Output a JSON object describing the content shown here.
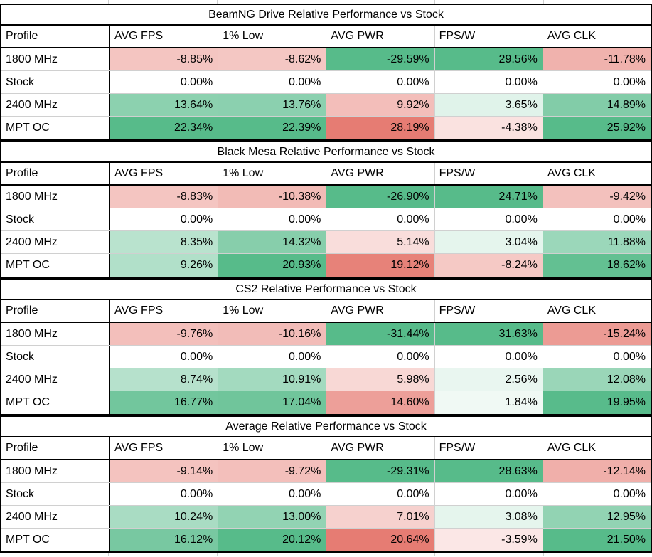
{
  "palette": {
    "border_black": "#000000",
    "gridline_gray": "#d0d0d0",
    "cell_white": "#ffffff",
    "text": "#000000"
  },
  "color_scale": {
    "type": "diverging",
    "negative_color": "#e67c73",
    "midpoint_color": "#ffffff",
    "positive_color": "#57bb8a",
    "note": "AVG PWR column inverted: lower power shown green, higher power shown red"
  },
  "chart_data": [
    {
      "type": "table",
      "title": "BeamNG Drive Relative Performance vs Stock",
      "columns": [
        "Profile",
        "AVG FPS",
        "1% Low",
        "AVG PWR",
        "FPS/W",
        "AVG CLK"
      ],
      "rows": [
        {
          "profile": "1800 MHz",
          "values": [
            "-8.85%",
            "-8.62%",
            "-29.59%",
            "29.56%",
            "-11.78%"
          ],
          "colors": [
            "#f4c5c1",
            "#f4c7c3",
            "#57bb8a",
            "#57bb8a",
            "#f0b2ad"
          ]
        },
        {
          "profile": "Stock",
          "values": [
            "0.00%",
            "0.00%",
            "0.00%",
            "0.00%",
            "0.00%"
          ],
          "colors": [
            "#ffffff",
            "#ffffff",
            "#ffffff",
            "#ffffff",
            "#ffffff"
          ]
        },
        {
          "profile": "2400 MHz",
          "values": [
            "13.64%",
            "13.76%",
            "9.92%",
            "3.65%",
            "14.89%"
          ],
          "colors": [
            "#8cd1af",
            "#8bd0af",
            "#f3beba",
            "#e0f3ea",
            "#82cca8"
          ]
        },
        {
          "profile": "MPT OC",
          "values": [
            "22.34%",
            "22.39%",
            "28.19%",
            "-4.38%",
            "25.92%"
          ],
          "colors": [
            "#57bb8a",
            "#57bb8a",
            "#e67c73",
            "#fae2e0",
            "#57bb8a"
          ]
        }
      ]
    },
    {
      "type": "table",
      "title": "Black Mesa Relative Performance vs Stock",
      "columns": [
        "Profile",
        "AVG FPS",
        "1% Low",
        "AVG PWR",
        "FPS/W",
        "AVG CLK"
      ],
      "rows": [
        {
          "profile": "1800 MHz",
          "values": [
            "-8.83%",
            "-10.38%",
            "-26.90%",
            "24.71%",
            "-9.42%"
          ],
          "colors": [
            "#f4c5c1",
            "#f2bbb6",
            "#57bb8a",
            "#57bb8a",
            "#f3c1bd"
          ]
        },
        {
          "profile": "Stock",
          "values": [
            "0.00%",
            "0.00%",
            "0.00%",
            "0.00%",
            "0.00%"
          ],
          "colors": [
            "#ffffff",
            "#ffffff",
            "#ffffff",
            "#ffffff",
            "#ffffff"
          ]
        },
        {
          "profile": "2400 MHz",
          "values": [
            "8.35%",
            "14.32%",
            "5.14%",
            "3.04%",
            "11.88%"
          ],
          "colors": [
            "#b9e3ce",
            "#87ceab",
            "#f9dddb",
            "#e5f5ed",
            "#9bd7ba"
          ]
        },
        {
          "profile": "MPT OC",
          "values": [
            "9.26%",
            "20.93%",
            "19.12%",
            "-8.24%",
            "18.62%"
          ],
          "colors": [
            "#b1e0c9",
            "#57bb8a",
            "#e78279",
            "#f5c9c5",
            "#63c092"
          ]
        }
      ]
    },
    {
      "type": "table",
      "title": "CS2 Relative Performance vs Stock",
      "columns": [
        "Profile",
        "AVG FPS",
        "1% Low",
        "AVG PWR",
        "FPS/W",
        "AVG CLK"
      ],
      "rows": [
        {
          "profile": "1800 MHz",
          "values": [
            "-9.76%",
            "-10.16%",
            "-31.44%",
            "31.63%",
            "-15.24%"
          ],
          "colors": [
            "#f3bfbb",
            "#f2bcb8",
            "#57bb8a",
            "#57bb8a",
            "#ec9b94"
          ]
        },
        {
          "profile": "Stock",
          "values": [
            "0.00%",
            "0.00%",
            "0.00%",
            "0.00%",
            "0.00%"
          ],
          "colors": [
            "#ffffff",
            "#ffffff",
            "#ffffff",
            "#ffffff",
            "#ffffff"
          ]
        },
        {
          "profile": "2400 MHz",
          "values": [
            "8.74%",
            "10.91%",
            "5.98%",
            "2.56%",
            "12.08%"
          ],
          "colors": [
            "#b6e1cc",
            "#a3dabf",
            "#f8d8d5",
            "#e9f6f0",
            "#9ad6b8"
          ]
        },
        {
          "profile": "MPT OC",
          "values": [
            "16.77%",
            "17.04%",
            "14.60%",
            "1.84%",
            "19.95%"
          ],
          "colors": [
            "#72c69d",
            "#70c59b",
            "#ed9f99",
            "#f0f9f4",
            "#58bb8b"
          ]
        }
      ]
    },
    {
      "type": "table",
      "title": "Average Relative Performance vs Stock",
      "columns": [
        "Profile",
        "AVG FPS",
        "1% Low",
        "AVG PWR",
        "FPS/W",
        "AVG CLK"
      ],
      "rows": [
        {
          "profile": "1800 MHz",
          "values": [
            "-9.14%",
            "-9.72%",
            "-29.31%",
            "28.63%",
            "-12.14%"
          ],
          "colors": [
            "#f4c3bf",
            "#f3bfbb",
            "#57bb8a",
            "#57bb8a",
            "#f0afaa"
          ]
        },
        {
          "profile": "Stock",
          "values": [
            "0.00%",
            "0.00%",
            "0.00%",
            "0.00%",
            "0.00%"
          ],
          "colors": [
            "#ffffff",
            "#ffffff",
            "#ffffff",
            "#ffffff",
            "#ffffff"
          ]
        },
        {
          "profile": "2400 MHz",
          "values": [
            "10.24%",
            "13.00%",
            "7.01%",
            "3.08%",
            "12.95%"
          ],
          "colors": [
            "#a9dcc3",
            "#92d3b3",
            "#f6d1ce",
            "#e5f5ed",
            "#92d3b3"
          ]
        },
        {
          "profile": "MPT OC",
          "values": [
            "16.12%",
            "20.12%",
            "20.64%",
            "-3.59%",
            "21.50%"
          ],
          "colors": [
            "#78c8a1",
            "#57bb8a",
            "#e67c73",
            "#fbe7e6",
            "#57bb8a"
          ]
        }
      ]
    }
  ]
}
